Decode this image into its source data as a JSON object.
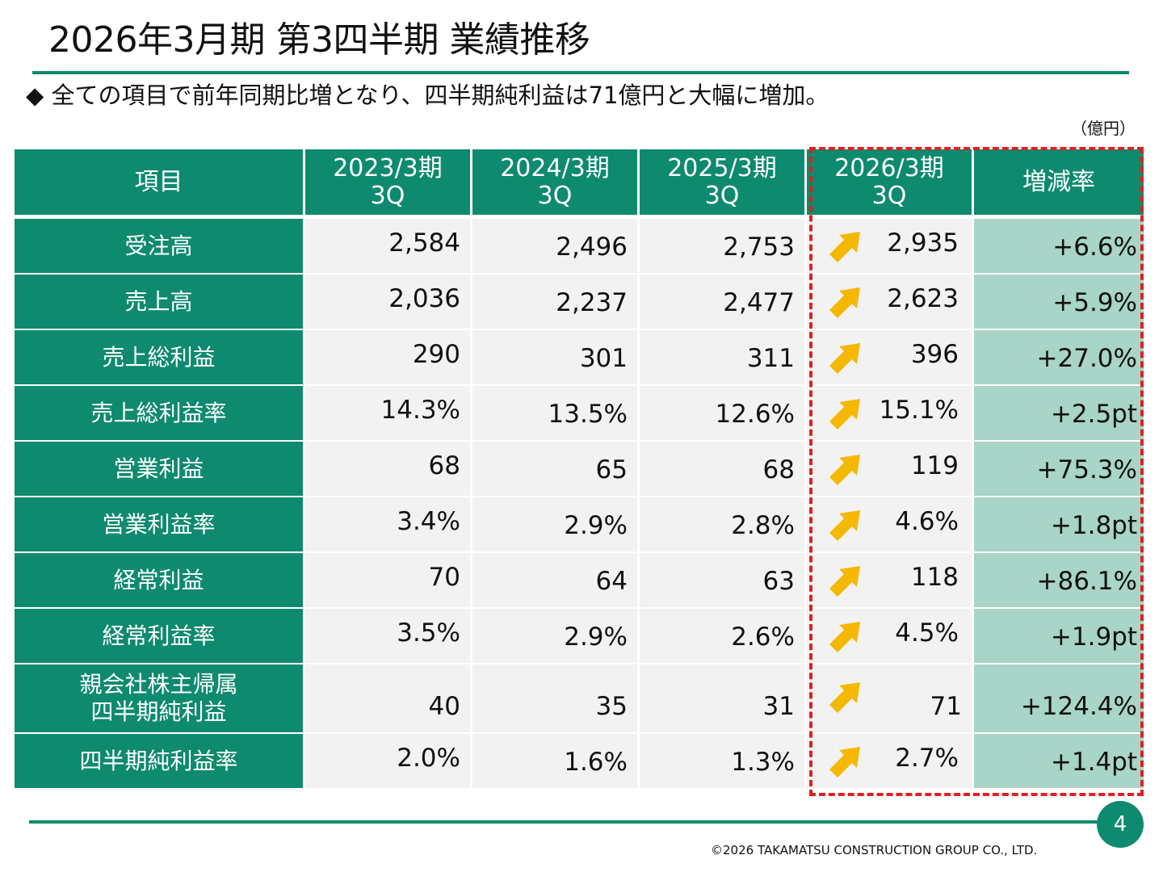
{
  "title": "2026年3月期 第3四半期 業績推移",
  "subtitle": "◆ 全ての項目で前年同期比増となり、四半期純利益は71億円と大幅に増加。",
  "unit": "（億円）",
  "table": {
    "headers": [
      {
        "line1": "項目",
        "line2": ""
      },
      {
        "line1": "2023/3期",
        "line2": "3Q"
      },
      {
        "line1": "2024/3期",
        "line2": "3Q"
      },
      {
        "line1": "2025/3期",
        "line2": "3Q"
      },
      {
        "line1": "2026/3期",
        "line2": "3Q"
      },
      {
        "line1": "増減率",
        "line2": ""
      }
    ],
    "rows": [
      {
        "label1": "受注高",
        "label2": "",
        "fy2023": "2,584",
        "fy2024": "2,496",
        "fy2025": "2,753",
        "fy2026": "2,935",
        "change": "+6.6%"
      },
      {
        "label1": "売上高",
        "label2": "",
        "fy2023": "2,036",
        "fy2024": "2,237",
        "fy2025": "2,477",
        "fy2026": "2,623",
        "change": "+5.9%"
      },
      {
        "label1": "売上総利益",
        "label2": "",
        "fy2023": "290",
        "fy2024": "301",
        "fy2025": "311",
        "fy2026": "396",
        "change": "+27.0%"
      },
      {
        "label1": "売上総利益率",
        "label2": "",
        "fy2023": "14.3%",
        "fy2024": "13.5%",
        "fy2025": "12.6%",
        "fy2026": "15.1%",
        "change": "+2.5pt"
      },
      {
        "label1": "営業利益",
        "label2": "",
        "fy2023": "68",
        "fy2024": "65",
        "fy2025": "68",
        "fy2026": "119",
        "change": "+75.3%"
      },
      {
        "label1": "営業利益率",
        "label2": "",
        "fy2023": "3.4%",
        "fy2024": "2.9%",
        "fy2025": "2.8%",
        "fy2026": "4.6%",
        "change": "+1.8pt"
      },
      {
        "label1": "経常利益",
        "label2": "",
        "fy2023": "70",
        "fy2024": "64",
        "fy2025": "63",
        "fy2026": "118",
        "change": "+86.1%"
      },
      {
        "label1": "経常利益率",
        "label2": "",
        "fy2023": "3.5%",
        "fy2024": "2.9%",
        "fy2025": "2.6%",
        "fy2026": "4.5%",
        "change": "+1.9pt"
      },
      {
        "label1": "親会社株主帰属",
        "label2": "四半期純利益",
        "fy2023": "40",
        "fy2024": "35",
        "fy2025": "31",
        "fy2026": "71",
        "change": "+124.4%"
      },
      {
        "label1": "四半期純利益率",
        "label2": "",
        "fy2023": "2.0%",
        "fy2024": "1.6%",
        "fy2025": "1.3%",
        "fy2026": "2.7%",
        "change": "+1.4pt"
      }
    ]
  },
  "colors": {
    "accent": "#0e8a6e",
    "highlight_box": "#e02020",
    "arrow": "#f5b800",
    "rate_bg": "#a9d4c8"
  },
  "icons": {
    "trend": "up-arrow-icon"
  },
  "page_number": "4",
  "copyright": "©2026 TAKAMATSU CONSTRUCTION GROUP CO., LTD."
}
